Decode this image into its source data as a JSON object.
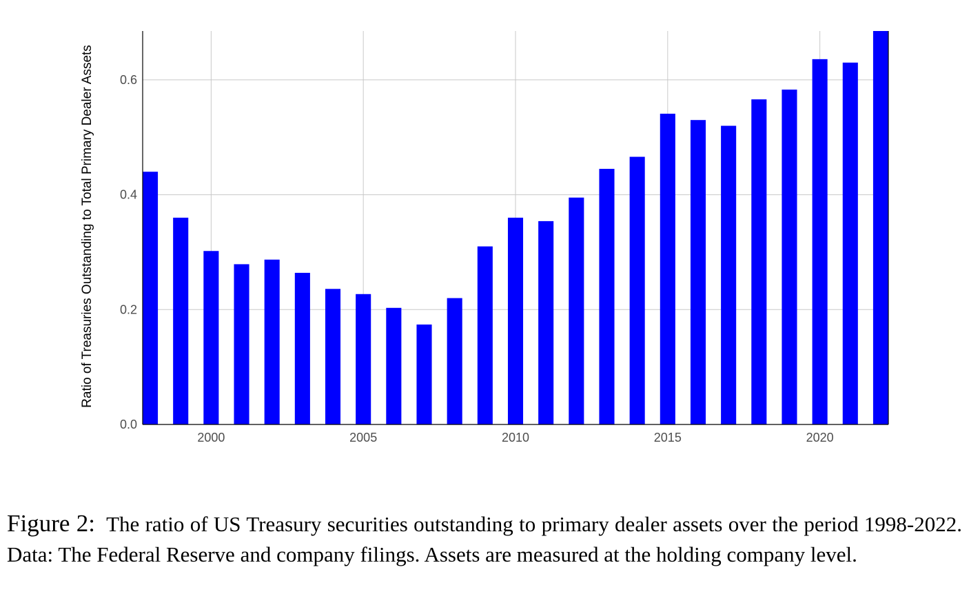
{
  "chart_data": {
    "type": "bar",
    "title": "",
    "xlabel": "",
    "ylabel": "Ratio of Treasuries Outstanding to Total Primary Dealer Assets",
    "x": [
      1998,
      1999,
      2000,
      2001,
      2002,
      2003,
      2004,
      2005,
      2006,
      2007,
      2008,
      2009,
      2010,
      2011,
      2012,
      2013,
      2014,
      2015,
      2016,
      2017,
      2018,
      2019,
      2020,
      2021,
      2022
    ],
    "values": [
      0.44,
      0.36,
      0.302,
      0.279,
      0.287,
      0.264,
      0.236,
      0.227,
      0.203,
      0.174,
      0.22,
      0.31,
      0.36,
      0.354,
      0.395,
      0.445,
      0.466,
      0.541,
      0.53,
      0.52,
      0.566,
      0.583,
      0.636,
      0.63,
      0.685
    ],
    "xlim": [
      1997.75,
      2022.25
    ],
    "ylim": [
      0,
      0.685
    ],
    "xticks": [
      2000,
      2005,
      2010,
      2015,
      2020
    ],
    "yticks": [
      0.0,
      0.2,
      0.4,
      0.6
    ],
    "ytick_labels": [
      "0.0",
      "0.2",
      "0.4",
      "0.6"
    ],
    "grid": true,
    "bar_color": "#0000ff",
    "grid_color": "#c8c8c8"
  },
  "caption": {
    "label": "Figure 2:",
    "text": "The ratio of US Treasury securities outstanding to primary dealer assets over the period 1998-2022. Data: The Federal Reserve and company filings. Assets are measured at the holding company level."
  }
}
